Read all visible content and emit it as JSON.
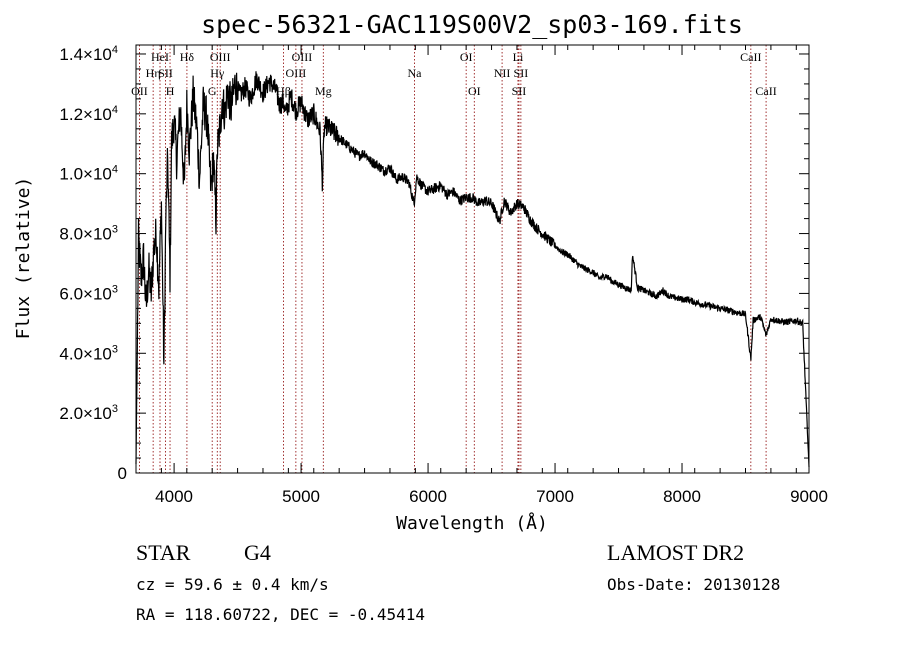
{
  "chart_data": {
    "type": "line",
    "title": "spec-56321-GAC119S00V2_sp03-169.fits",
    "xlabel": "Wavelength (Å)",
    "ylabel": "Flux (relative)",
    "xlim": [
      3700,
      9000
    ],
    "ylim": [
      0,
      14300
    ],
    "x_ticks": [
      {
        "value": 4000,
        "label": "4000"
      },
      {
        "value": 5000,
        "label": "5000"
      },
      {
        "value": 6000,
        "label": "6000"
      },
      {
        "value": 7000,
        "label": "7000"
      },
      {
        "value": 8000,
        "label": "8000"
      },
      {
        "value": 9000,
        "label": "9000"
      }
    ],
    "y_ticks": [
      {
        "value": 0,
        "mant": "0",
        "exp": ""
      },
      {
        "value": 2000,
        "mant": "2.0×10",
        "exp": "3"
      },
      {
        "value": 4000,
        "mant": "4.0×10",
        "exp": "3"
      },
      {
        "value": 6000,
        "mant": "6.0×10",
        "exp": "3"
      },
      {
        "value": 8000,
        "mant": "8.0×10",
        "exp": "3"
      },
      {
        "value": 10000,
        "mant": "1.0×10",
        "exp": "4"
      },
      {
        "value": 12000,
        "mant": "1.2×10",
        "exp": "4"
      },
      {
        "value": 14000,
        "mant": "1.4×10",
        "exp": "4"
      }
    ],
    "spectrum": {
      "x": [
        3700,
        3720,
        3740,
        3760,
        3780,
        3800,
        3820,
        3840,
        3860,
        3880,
        3900,
        3920,
        3935,
        3950,
        3968,
        3980,
        4000,
        4020,
        4050,
        4080,
        4101,
        4120,
        4150,
        4180,
        4200,
        4230,
        4260,
        4290,
        4310,
        4330,
        4340,
        4360,
        4380,
        4400,
        4420,
        4450,
        4480,
        4520,
        4560,
        4600,
        4650,
        4700,
        4750,
        4800,
        4830,
        4861,
        4880,
        4920,
        4960,
        5000,
        5050,
        5100,
        5150,
        5167,
        5183,
        5200,
        5250,
        5300,
        5350,
        5400,
        5450,
        5500,
        5550,
        5600,
        5650,
        5700,
        5750,
        5800,
        5850,
        5890,
        5910,
        5950,
        6000,
        6050,
        6100,
        6150,
        6200,
        6250,
        6300,
        6350,
        6400,
        6450,
        6500,
        6563,
        6600,
        6650,
        6700,
        6750,
        6800,
        6850,
        6900,
        6950,
        7000,
        7050,
        7100,
        7150,
        7200,
        7250,
        7300,
        7350,
        7400,
        7450,
        7500,
        7550,
        7600,
        7610,
        7650,
        7700,
        7750,
        7800,
        7850,
        7900,
        7950,
        8000,
        8050,
        8100,
        8150,
        8200,
        8250,
        8300,
        8350,
        8400,
        8450,
        8500,
        8542,
        8560,
        8600,
        8620,
        8662,
        8700,
        8750,
        8800,
        8850,
        8900,
        8950,
        9000
      ],
      "y": [
        300,
        7800,
        6500,
        7200,
        5500,
        6800,
        6000,
        7500,
        8000,
        6200,
        9000,
        3600,
        8500,
        10500,
        6500,
        11000,
        11800,
        10500,
        12200,
        9500,
        12400,
        10800,
        12600,
        11500,
        9800,
        12300,
        11800,
        9500,
        10500,
        8500,
        10800,
        11500,
        12500,
        12000,
        12800,
        12200,
        13000,
        12600,
        12900,
        12500,
        13200,
        12700,
        13100,
        12800,
        12300,
        12400,
        12000,
        12600,
        12100,
        12400,
        11800,
        12000,
        11400,
        9700,
        11500,
        11600,
        11400,
        11200,
        11000,
        10800,
        10600,
        10700,
        10400,
        10300,
        10100,
        10200,
        9800,
        9900,
        9700,
        9000,
        9900,
        9600,
        9400,
        9500,
        9600,
        9300,
        9400,
        9100,
        9200,
        9200,
        9000,
        9100,
        9000,
        8400,
        9100,
        8700,
        9000,
        8900,
        8500,
        8200,
        8000,
        7800,
        7600,
        7400,
        7300,
        7100,
        6900,
        6800,
        6700,
        6500,
        6600,
        6400,
        6300,
        6200,
        6100,
        7300,
        6200,
        6100,
        6000,
        5900,
        6100,
        5900,
        5850,
        5800,
        5800,
        5700,
        5650,
        5600,
        5550,
        5500,
        5450,
        5400,
        5350,
        5300,
        3800,
        5100,
        5200,
        5200,
        4600,
        5150,
        5100,
        5050,
        5050,
        5100,
        5000,
        200
      ]
    },
    "lines": [
      {
        "wavelength": 3727,
        "label": "OII",
        "row": 3
      },
      {
        "wavelength": 3835,
        "label": "Hη",
        "row": 2
      },
      {
        "wavelength": 3889,
        "label": "HeI",
        "row": 1
      },
      {
        "wavelength": 3933,
        "label": "SII",
        "row": 2
      },
      {
        "wavelength": 3968,
        "label": "H",
        "row": 3
      },
      {
        "wavelength": 4101,
        "label": "Hδ",
        "row": 1
      },
      {
        "wavelength": 4300,
        "label": "G",
        "row": 3
      },
      {
        "wavelength": 4340,
        "label": "Hγ",
        "row": 2
      },
      {
        "wavelength": 4363,
        "label": "OIII",
        "row": 1
      },
      {
        "wavelength": 4861,
        "label": "Hβ",
        "row": 3
      },
      {
        "wavelength": 4959,
        "label": "OIII",
        "row": 2
      },
      {
        "wavelength": 5007,
        "label": "OIII",
        "row": 1
      },
      {
        "wavelength": 5175,
        "label": "Mg",
        "row": 3
      },
      {
        "wavelength": 5893,
        "label": "Na",
        "row": 2
      },
      {
        "wavelength": 6300,
        "label": "OI",
        "row": 1
      },
      {
        "wavelength": 6364,
        "label": "OI",
        "row": 3
      },
      {
        "wavelength": 6583,
        "label": "NII",
        "row": 2
      },
      {
        "wavelength": 6708,
        "label": "Li",
        "row": 1
      },
      {
        "wavelength": 6716,
        "label": "SII",
        "row": 3
      },
      {
        "wavelength": 6731,
        "label": "SII",
        "row": 2
      },
      {
        "wavelength": 8542,
        "label": "CaII",
        "row": 1
      },
      {
        "wavelength": 8662,
        "label": "CaII",
        "row": 3
      }
    ]
  },
  "info": {
    "object_class": "STAR",
    "subclass": "G4",
    "survey": "LAMOST DR2",
    "redshift": "cz = 59.6 ± 0.4 km/s",
    "obs_date": "Obs-Date: 20130128",
    "coords": "RA = 118.60722, DEC =  -0.45414"
  },
  "colors": {
    "spectrum": "#000000",
    "line_marker": "#8b0000",
    "background": "#ffffff"
  }
}
